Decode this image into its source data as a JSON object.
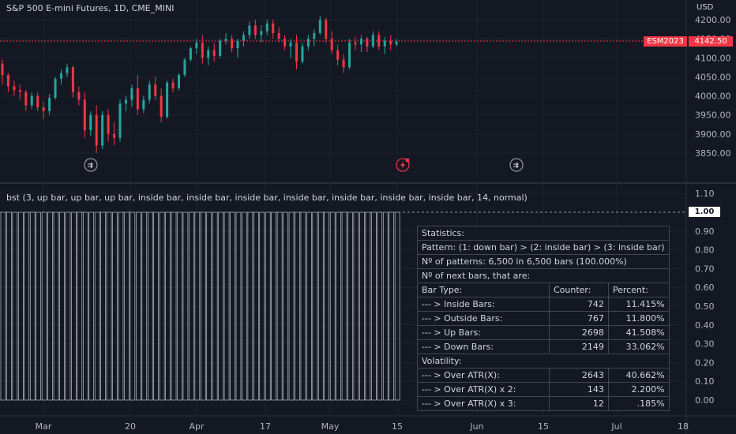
{
  "chart": {
    "title": "S&P 500 E-mini Futures, 1D, CME_MINI",
    "currency": "USD",
    "symbol_tag": "ESM2023",
    "last_price": "4142.50",
    "price_ticks": [
      "4200.00",
      "4150.00",
      "4100.00",
      "4050.00",
      "4000.00",
      "3950.00",
      "3900.00",
      "3850.00"
    ],
    "time_labels": [
      "Mar",
      "20",
      "Apr",
      "17",
      "May",
      "15",
      "Jun",
      "15",
      "Jul",
      "18"
    ],
    "up_color": "#26a69a",
    "down_color": "#f23645"
  },
  "indicator": {
    "title": "bst (3, up bar, up bar, up bar, inside bar, inside bar, inside bar, inside bar, inside bar, inside bar, inside bar, 14, normal)",
    "current_value": "1.00",
    "scale_ticks": [
      "1.10",
      "0.90",
      "0.80",
      "0.70",
      "0.60",
      "0.50",
      "0.40",
      "0.30",
      "0.20",
      "0.10",
      "0.00"
    ]
  },
  "stats": {
    "title": "Statistics:",
    "pattern": "Pattern: (1: down bar) > (2: inside bar) > (3: inside bar)",
    "count_line": "Nº of patterns: 6,500 in 6,500 bars (100.000%)",
    "next_bars_line": "Nº of next bars, that are:",
    "headers": [
      "Bar Type:",
      "Counter:",
      "Percent:"
    ],
    "rows": [
      {
        "type": "--- > Inside Bars:",
        "counter": "742",
        "percent": "11.415%"
      },
      {
        "type": "--- > Outside Bars:",
        "counter": "767",
        "percent": "11.800%"
      },
      {
        "type": "--- > Up Bars:",
        "counter": "2698",
        "percent": "41.508%"
      },
      {
        "type": "--- > Down Bars:",
        "counter": "2149",
        "percent": "33.062%"
      }
    ],
    "volatility_title": "Volatility:",
    "vol_rows": [
      {
        "type": "--- > Over ATR(X):",
        "counter": "2643",
        "percent": "40.662%"
      },
      {
        "type": "--- > Over ATR(X) x 2:",
        "counter": "143",
        "percent": "2.200%"
      },
      {
        "type": "--- > Over ATR(X) x 3:",
        "counter": "12",
        "percent": ".185%"
      }
    ]
  },
  "icons": {
    "event_1": "dividend-arrow-icon",
    "event_2": "earnings-flash-icon",
    "event_3": "dividend-arrow-icon"
  }
}
